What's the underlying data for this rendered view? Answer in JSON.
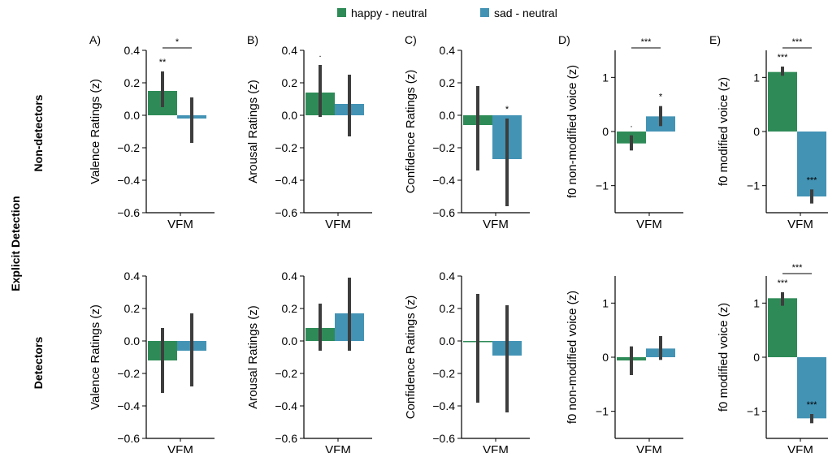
{
  "legend": [
    {
      "label": "happy - neutral",
      "color": "#2e8b57"
    },
    {
      "label": "sad - neutral",
      "color": "#4393b5"
    }
  ],
  "row_group_label": "Explicit Detection",
  "row_labels": [
    "Non-detectors",
    "Detectors"
  ],
  "chart_data": [
    {
      "type": "bar",
      "panel": "A)",
      "row": "Non-detectors",
      "ylabel": "Valence Ratings (z)",
      "categories": [
        "VFM"
      ],
      "ylim": [
        -0.6,
        0.4
      ],
      "yticks": [
        0.4,
        0.2,
        0.0,
        -0.2,
        -0.4,
        -0.6
      ],
      "tick_labels": [
        "0.4",
        "0.2",
        "0.0",
        "−0.2",
        "−0.4",
        "−0.6"
      ],
      "series": [
        {
          "name": "happy - neutral",
          "values": [
            0.15
          ],
          "ci": [
            0.05,
            0.27
          ],
          "sig": "**"
        },
        {
          "name": "sad - neutral",
          "values": [
            -0.02
          ],
          "ci": [
            -0.17,
            0.11
          ],
          "sig": ""
        }
      ],
      "comparison_sig": "*"
    },
    {
      "type": "bar",
      "panel": "B)",
      "row": "Non-detectors",
      "ylabel": "Arousal Ratings (z)",
      "categories": [
        "VFM"
      ],
      "ylim": [
        -0.6,
        0.4
      ],
      "yticks": [
        0.4,
        0.2,
        0.0,
        -0.2,
        -0.4,
        -0.6
      ],
      "tick_labels": [
        "0.4",
        "0.2",
        "0.0",
        "−0.2",
        "−0.4",
        "−0.6"
      ],
      "series": [
        {
          "name": "happy - neutral",
          "values": [
            0.14
          ],
          "ci": [
            -0.01,
            0.31
          ],
          "sig": "."
        },
        {
          "name": "sad - neutral",
          "values": [
            0.07
          ],
          "ci": [
            -0.13,
            0.25
          ],
          "sig": ""
        }
      ],
      "comparison_sig": ""
    },
    {
      "type": "bar",
      "panel": "C)",
      "row": "Non-detectors",
      "ylabel": "Confidence Ratings (z)",
      "categories": [
        "VFM"
      ],
      "ylim": [
        -0.6,
        0.4
      ],
      "yticks": [
        0.4,
        0.2,
        0.0,
        -0.2,
        -0.4,
        -0.6
      ],
      "tick_labels": [
        "0.4",
        "0.2",
        "0.0",
        "−0.2",
        "−0.4",
        "−0.6"
      ],
      "series": [
        {
          "name": "happy - neutral",
          "values": [
            -0.06
          ],
          "ci": [
            -0.34,
            0.18
          ],
          "sig": ""
        },
        {
          "name": "sad - neutral",
          "values": [
            -0.27
          ],
          "ci": [
            -0.56,
            -0.02
          ],
          "sig": "*"
        }
      ],
      "comparison_sig": ""
    },
    {
      "type": "bar",
      "panel": "D)",
      "row": "Non-detectors",
      "ylabel": "f0 non-modified voice (z)",
      "categories": [
        "VFM"
      ],
      "ylim": [
        -1.5,
        1.5
      ],
      "yticks": [
        1,
        0,
        -1
      ],
      "tick_labels": [
        "1",
        "0",
        "−1"
      ],
      "series": [
        {
          "name": "happy - neutral",
          "values": [
            -0.22
          ],
          "ci": [
            -0.35,
            -0.07
          ],
          "sig": "."
        },
        {
          "name": "sad - neutral",
          "values": [
            0.28
          ],
          "ci": [
            0.1,
            0.47
          ],
          "sig": "*"
        }
      ],
      "comparison_sig": "***"
    },
    {
      "type": "bar",
      "panel": "E)",
      "row": "Non-detectors",
      "ylabel": "f0 modified voice (z)",
      "categories": [
        "VFM"
      ],
      "ylim": [
        -1.5,
        1.5
      ],
      "yticks": [
        1,
        0,
        -1
      ],
      "tick_labels": [
        "1",
        "0",
        "−1"
      ],
      "series": [
        {
          "name": "happy - neutral",
          "values": [
            1.1
          ],
          "ci": [
            1.03,
            1.2
          ],
          "sig": "***"
        },
        {
          "name": "sad - neutral",
          "values": [
            -1.2
          ],
          "ci": [
            -1.33,
            -1.07
          ],
          "sig": "***"
        }
      ],
      "comparison_sig": "***"
    },
    {
      "type": "bar",
      "panel": "",
      "row": "Detectors",
      "ylabel": "Valence Ratings (z)",
      "categories": [
        "VFM"
      ],
      "ylim": [
        -0.6,
        0.4
      ],
      "yticks": [
        0.4,
        0.2,
        0.0,
        -0.2,
        -0.4,
        -0.6
      ],
      "tick_labels": [
        "0.4",
        "0.2",
        "0.0",
        "−0.2",
        "−0.4",
        "−0.6"
      ],
      "series": [
        {
          "name": "happy - neutral",
          "values": [
            -0.12
          ],
          "ci": [
            -0.32,
            0.08
          ],
          "sig": ""
        },
        {
          "name": "sad - neutral",
          "values": [
            -0.06
          ],
          "ci": [
            -0.28,
            0.17
          ],
          "sig": ""
        }
      ],
      "comparison_sig": ""
    },
    {
      "type": "bar",
      "panel": "",
      "row": "Detectors",
      "ylabel": "Arousal Ratings (z)",
      "categories": [
        "VFM"
      ],
      "ylim": [
        -0.6,
        0.4
      ],
      "yticks": [
        0.4,
        0.2,
        0.0,
        -0.2,
        -0.4,
        -0.6
      ],
      "tick_labels": [
        "0.4",
        "0.2",
        "0.0",
        "−0.2",
        "−0.4",
        "−0.6"
      ],
      "series": [
        {
          "name": "happy - neutral",
          "values": [
            0.08
          ],
          "ci": [
            -0.06,
            0.23
          ],
          "sig": ""
        },
        {
          "name": "sad - neutral",
          "values": [
            0.17
          ],
          "ci": [
            -0.06,
            0.39
          ],
          "sig": ""
        }
      ],
      "comparison_sig": ""
    },
    {
      "type": "bar",
      "panel": "",
      "row": "Detectors",
      "ylabel": "Confidence Ratings (z)",
      "categories": [
        "VFM"
      ],
      "ylim": [
        -0.6,
        0.4
      ],
      "yticks": [
        0.4,
        0.2,
        0.0,
        -0.2,
        -0.4,
        -0.6
      ],
      "tick_labels": [
        "0.4",
        "0.2",
        "0.0",
        "−0.2",
        "−0.4",
        "−0.6"
      ],
      "series": [
        {
          "name": "happy - neutral",
          "values": [
            -0.005
          ],
          "ci": [
            -0.38,
            0.29
          ],
          "sig": ""
        },
        {
          "name": "sad - neutral",
          "values": [
            -0.09
          ],
          "ci": [
            -0.44,
            0.22
          ],
          "sig": ""
        }
      ],
      "comparison_sig": ""
    },
    {
      "type": "bar",
      "panel": "",
      "row": "Detectors",
      "ylabel": "f0 non-modified voice (z)",
      "categories": [
        "VFM"
      ],
      "ylim": [
        -1.5,
        1.5
      ],
      "yticks": [
        1,
        0,
        -1
      ],
      "tick_labels": [
        "1",
        "0",
        "−1"
      ],
      "series": [
        {
          "name": "happy - neutral",
          "values": [
            -0.06
          ],
          "ci": [
            -0.33,
            0.2
          ],
          "sig": ""
        },
        {
          "name": "sad - neutral",
          "values": [
            0.16
          ],
          "ci": [
            -0.05,
            0.39
          ],
          "sig": ""
        }
      ],
      "comparison_sig": ""
    },
    {
      "type": "bar",
      "panel": "",
      "row": "Detectors",
      "ylabel": "f0 modified voice (z)",
      "categories": [
        "VFM"
      ],
      "ylim": [
        -1.5,
        1.5
      ],
      "yticks": [
        1,
        0,
        -1
      ],
      "tick_labels": [
        "1",
        "0",
        "−1"
      ],
      "series": [
        {
          "name": "happy - neutral",
          "values": [
            1.09
          ],
          "ci": [
            0.95,
            1.2
          ],
          "sig": "***"
        },
        {
          "name": "sad - neutral",
          "values": [
            -1.13
          ],
          "ci": [
            -1.22,
            -1.05
          ],
          "sig": "***"
        }
      ],
      "comparison_sig": "***"
    }
  ]
}
